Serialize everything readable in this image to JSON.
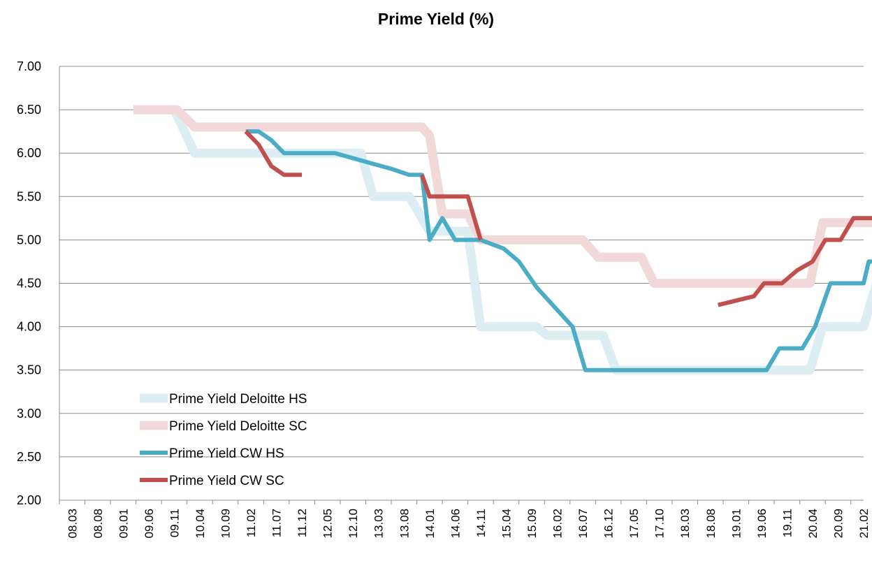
{
  "chart_data": {
    "type": "line",
    "title": "Prime Yield (%)",
    "xlabel": "",
    "ylabel": "",
    "ylim": [
      2.0,
      7.0
    ],
    "yticks": [
      "2.00",
      "2.50",
      "3.00",
      "3.50",
      "4.00",
      "4.50",
      "5.00",
      "5.50",
      "6.00",
      "6.50",
      "7.00"
    ],
    "x_ticks": [
      "08.03",
      "08.08",
      "09.01",
      "09.06",
      "09.11",
      "10.04",
      "10.09",
      "11.02",
      "11.07",
      "11.12",
      "12.05",
      "12.10",
      "13.03",
      "13.08",
      "14.01",
      "14.06",
      "14.11",
      "15.04",
      "15.09",
      "16.02",
      "16.07",
      "16.12",
      "17.05",
      "17.10",
      "18.03",
      "18.08",
      "19.01",
      "19.06",
      "19.11",
      "20.04",
      "20.09",
      "21.02"
    ],
    "grid": "horizontal",
    "legend_position": "lower-left",
    "series": [
      {
        "name": "Prime Yield Deloitte HS",
        "color": "#dcedf3",
        "width": "thick",
        "points": [
          [
            2.4,
            6.5
          ],
          [
            4.0,
            6.5
          ],
          [
            4.8,
            6.0
          ],
          [
            11.3,
            6.0
          ],
          [
            11.8,
            5.5
          ],
          [
            13.2,
            5.5
          ],
          [
            14.0,
            5.1
          ],
          [
            15.5,
            5.1
          ],
          [
            16.0,
            4.0
          ],
          [
            18.2,
            4.0
          ],
          [
            18.6,
            3.9
          ],
          [
            20.8,
            3.9
          ],
          [
            21.3,
            3.5
          ],
          [
            28.9,
            3.5
          ],
          [
            29.4,
            4.0
          ],
          [
            31.0,
            4.0
          ],
          [
            31.5,
            4.5
          ]
        ]
      },
      {
        "name": "Prime Yield Deloitte SC",
        "color": "#f2d9d9",
        "width": "thick",
        "points": [
          [
            2.4,
            6.5
          ],
          [
            4.1,
            6.5
          ],
          [
            4.8,
            6.3
          ],
          [
            13.7,
            6.3
          ],
          [
            14.0,
            6.2
          ],
          [
            14.5,
            5.3
          ],
          [
            15.5,
            5.3
          ],
          [
            16.0,
            5.0
          ],
          [
            20.0,
            5.0
          ],
          [
            20.6,
            4.8
          ],
          [
            22.3,
            4.8
          ],
          [
            22.8,
            4.5
          ],
          [
            28.9,
            4.5
          ],
          [
            29.4,
            5.2
          ],
          [
            31.5,
            5.2
          ]
        ]
      },
      {
        "name": "Prime Yield CW HS",
        "color": "#4bacc6",
        "width": "medium",
        "points": [
          [
            6.8,
            6.25
          ],
          [
            7.3,
            6.25
          ],
          [
            7.8,
            6.15
          ],
          [
            8.3,
            6.0
          ],
          [
            9.5,
            6.0
          ],
          [
            10.3,
            6.0
          ],
          [
            11.5,
            5.9
          ],
          [
            12.5,
            5.82
          ],
          [
            13.2,
            5.75
          ],
          [
            13.7,
            5.75
          ],
          [
            14.0,
            5.0
          ],
          [
            14.5,
            5.25
          ],
          [
            15.0,
            5.0
          ],
          [
            16.0,
            5.0
          ],
          [
            16.9,
            4.9
          ],
          [
            17.5,
            4.75
          ],
          [
            18.2,
            4.45
          ],
          [
            19.6,
            4.0
          ],
          [
            20.1,
            3.5
          ],
          [
            27.2,
            3.5
          ],
          [
            27.7,
            3.75
          ],
          [
            28.6,
            3.75
          ],
          [
            29.1,
            4.0
          ],
          [
            29.7,
            4.5
          ],
          [
            31.0,
            4.5
          ],
          [
            31.2,
            4.75
          ],
          [
            31.5,
            4.75
          ]
        ]
      },
      {
        "name": "Prime Yield CW SC",
        "color": "#c0504d",
        "width": "medium",
        "points": [
          [
            6.8,
            6.25
          ],
          [
            7.3,
            6.1
          ],
          [
            7.8,
            5.85
          ],
          [
            8.3,
            5.75
          ],
          [
            9.0,
            5.75
          ]
        ]
      },
      {
        "name": "Prime Yield CW SC",
        "color": "#c0504d",
        "width": "medium",
        "points": [
          [
            13.7,
            5.75
          ],
          [
            14.0,
            5.5
          ],
          [
            15.5,
            5.5
          ],
          [
            16.0,
            5.0
          ]
        ]
      },
      {
        "name": "Prime Yield CW SC",
        "color": "#c0504d",
        "width": "medium",
        "points": [
          [
            25.3,
            4.25
          ],
          [
            26.7,
            4.35
          ],
          [
            27.1,
            4.5
          ],
          [
            27.8,
            4.5
          ],
          [
            28.4,
            4.65
          ],
          [
            29.0,
            4.75
          ],
          [
            29.5,
            5.0
          ],
          [
            30.1,
            5.0
          ],
          [
            30.6,
            5.25
          ],
          [
            31.5,
            5.25
          ]
        ]
      }
    ],
    "legend": [
      {
        "label": "Prime Yield Deloitte HS",
        "color": "#dcedf3",
        "width": "thick"
      },
      {
        "label": "Prime Yield Deloitte SC",
        "color": "#f2d9d9",
        "width": "thick"
      },
      {
        "label": "Prime Yield CW HS",
        "color": "#4bacc6",
        "width": "medium"
      },
      {
        "label": "Prime Yield CW SC",
        "color": "#c0504d",
        "width": "medium"
      }
    ]
  }
}
